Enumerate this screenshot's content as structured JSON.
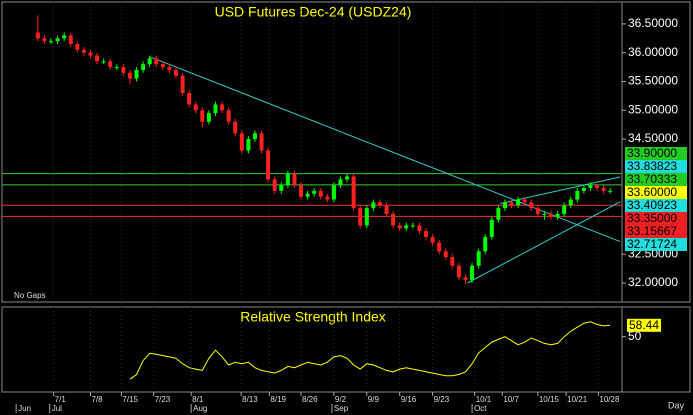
{
  "chart_data": {
    "type": "candlestick",
    "title": "USD  Futures  Dec-24  (USDZ24)",
    "note": "No Gaps",
    "period_label": "Day",
    "xlim": [
      -5.45,
      88.79
    ],
    "xticks": [
      {
        "value": 2.4,
        "label": "7/1"
      },
      {
        "value": 8.0,
        "label": "7/8"
      },
      {
        "value": 12.7,
        "label": "7/15"
      },
      {
        "value": 17.6,
        "label": "7/23"
      },
      {
        "value": 23.3,
        "label": "8/1"
      },
      {
        "value": 30.9,
        "label": "8/13"
      },
      {
        "value": 35.2,
        "label": "8/19"
      },
      {
        "value": 40.0,
        "label": "8/26"
      },
      {
        "value": 45.0,
        "label": "9/2"
      },
      {
        "value": 50.0,
        "label": "9/9"
      },
      {
        "value": 55.0,
        "label": "9/16"
      },
      {
        "value": 60.0,
        "label": "9/23"
      },
      {
        "value": 66.4,
        "label": "10/1"
      },
      {
        "value": 70.6,
        "label": "10/7"
      },
      {
        "value": 76.0,
        "label": "10/15"
      },
      {
        "value": 80.3,
        "label": "10/21"
      },
      {
        "value": 85.2,
        "label": "10/28"
      }
    ],
    "month_ticks": [
      {
        "value": -3.3,
        "label": "Jun"
      },
      {
        "value": 1.8,
        "label": "Jul"
      },
      {
        "value": 23.3,
        "label": "Aug"
      },
      {
        "value": 44.7,
        "label": "Sep"
      },
      {
        "value": 66.0,
        "label": "Oct"
      }
    ],
    "ylim": [
      31.67,
      36.88
    ],
    "yticks": [
      {
        "value": 36.5,
        "label": "36.50000"
      },
      {
        "value": 36.0,
        "label": "36.00000"
      },
      {
        "value": 35.5,
        "label": "35.50000"
      },
      {
        "value": 35.0,
        "label": "35.00000"
      },
      {
        "value": 34.5,
        "label": "34.50000"
      },
      {
        "value": 32.5,
        "label": "32.50000"
      },
      {
        "value": 32.0,
        "label": "32.00000"
      }
    ],
    "up_color": "#00ff00",
    "down_color": "#ff2020",
    "candles": [
      [
        36.35,
        36.65,
        36.2,
        36.25
      ],
      [
        36.25,
        36.3,
        36.15,
        36.2
      ],
      [
        36.2,
        36.25,
        36.15,
        36.2
      ],
      [
        36.2,
        36.3,
        36.15,
        36.25
      ],
      [
        36.25,
        36.35,
        36.2,
        36.3
      ],
      [
        36.3,
        36.35,
        36.1,
        36.15
      ],
      [
        36.15,
        36.2,
        36.0,
        36.05
      ],
      [
        36.05,
        36.1,
        35.95,
        36.0
      ],
      [
        36.0,
        36.05,
        35.9,
        35.95
      ],
      [
        35.95,
        36.0,
        35.8,
        35.85
      ],
      [
        35.85,
        35.9,
        35.8,
        35.85
      ],
      [
        35.85,
        35.9,
        35.7,
        35.75
      ],
      [
        35.75,
        35.8,
        35.7,
        35.75
      ],
      [
        35.75,
        35.8,
        35.6,
        35.65
      ],
      [
        35.65,
        35.7,
        35.45,
        35.55
      ],
      [
        35.55,
        35.75,
        35.5,
        35.7
      ],
      [
        35.7,
        35.85,
        35.65,
        35.8
      ],
      [
        35.8,
        35.95,
        35.75,
        35.9
      ],
      [
        35.9,
        35.95,
        35.75,
        35.8
      ],
      [
        35.8,
        35.85,
        35.7,
        35.75
      ],
      [
        35.75,
        35.8,
        35.65,
        35.7
      ],
      [
        35.7,
        35.75,
        35.55,
        35.6
      ],
      [
        35.6,
        35.65,
        35.25,
        35.3
      ],
      [
        35.3,
        35.35,
        35.05,
        35.1
      ],
      [
        35.1,
        35.15,
        34.95,
        35.0
      ],
      [
        35.0,
        35.05,
        34.7,
        34.8
      ],
      [
        34.8,
        35.0,
        34.75,
        34.95
      ],
      [
        34.95,
        35.15,
        34.9,
        35.1
      ],
      [
        35.1,
        35.15,
        34.95,
        35.0
      ],
      [
        35.0,
        35.05,
        34.75,
        34.8
      ],
      [
        34.8,
        34.85,
        34.55,
        34.6
      ],
      [
        34.6,
        34.65,
        34.25,
        34.3
      ],
      [
        34.3,
        34.55,
        34.25,
        34.5
      ],
      [
        34.5,
        34.65,
        34.45,
        34.6
      ],
      [
        34.6,
        34.65,
        34.25,
        34.3
      ],
      [
        34.3,
        34.35,
        33.75,
        33.8
      ],
      [
        33.8,
        33.85,
        33.55,
        33.6
      ],
      [
        33.6,
        33.75,
        33.55,
        33.7
      ],
      [
        33.7,
        33.95,
        33.65,
        33.9
      ],
      [
        33.9,
        33.95,
        33.65,
        33.7
      ],
      [
        33.7,
        33.75,
        33.45,
        33.5
      ],
      [
        33.5,
        33.6,
        33.45,
        33.55
      ],
      [
        33.55,
        33.65,
        33.5,
        33.6
      ],
      [
        33.6,
        33.65,
        33.45,
        33.5
      ],
      [
        33.5,
        33.55,
        33.4,
        33.45
      ],
      [
        33.45,
        33.75,
        33.4,
        33.7
      ],
      [
        33.7,
        33.85,
        33.65,
        33.8
      ],
      [
        33.8,
        33.9,
        33.75,
        33.85
      ],
      [
        33.85,
        33.9,
        33.25,
        33.3
      ],
      [
        33.3,
        33.35,
        32.95,
        33.0
      ],
      [
        33.0,
        33.35,
        32.95,
        33.3
      ],
      [
        33.3,
        33.45,
        33.25,
        33.4
      ],
      [
        33.4,
        33.45,
        33.3,
        33.35
      ],
      [
        33.35,
        33.4,
        33.15,
        33.2
      ],
      [
        33.2,
        33.25,
        32.95,
        33.0
      ],
      [
        33.0,
        33.05,
        32.9,
        32.95
      ],
      [
        32.95,
        33.05,
        32.9,
        33.0
      ],
      [
        33.0,
        33.05,
        32.95,
        33.0
      ],
      [
        33.0,
        33.05,
        32.85,
        32.9
      ],
      [
        32.9,
        32.95,
        32.75,
        32.8
      ],
      [
        32.8,
        32.85,
        32.65,
        32.7
      ],
      [
        32.7,
        32.75,
        32.5,
        32.55
      ],
      [
        32.55,
        32.6,
        32.4,
        32.45
      ],
      [
        32.45,
        32.5,
        32.25,
        32.3
      ],
      [
        32.3,
        32.35,
        32.05,
        32.1
      ],
      [
        32.1,
        32.15,
        31.98,
        32.05
      ],
      [
        32.05,
        32.35,
        32.0,
        32.3
      ],
      [
        32.3,
        32.6,
        32.25,
        32.55
      ],
      [
        32.55,
        32.85,
        32.5,
        32.8
      ],
      [
        32.8,
        33.15,
        32.75,
        33.1
      ],
      [
        33.1,
        33.35,
        33.05,
        33.3
      ],
      [
        33.3,
        33.45,
        33.25,
        33.4
      ],
      [
        33.4,
        33.45,
        33.3,
        33.35
      ],
      [
        33.35,
        33.5,
        33.3,
        33.45
      ],
      [
        33.45,
        33.5,
        33.35,
        33.4
      ],
      [
        33.4,
        33.45,
        33.25,
        33.3
      ],
      [
        33.3,
        33.35,
        33.15,
        33.2
      ],
      [
        33.2,
        33.25,
        33.1,
        33.2
      ],
      [
        33.2,
        33.25,
        33.1,
        33.15
      ],
      [
        33.15,
        33.25,
        33.1,
        33.2
      ],
      [
        33.2,
        33.4,
        33.15,
        33.35
      ],
      [
        33.35,
        33.5,
        33.3,
        33.45
      ],
      [
        33.45,
        33.65,
        33.4,
        33.6
      ],
      [
        33.6,
        33.7,
        33.55,
        33.65
      ],
      [
        33.65,
        33.75,
        33.6,
        33.7
      ],
      [
        33.7,
        33.72,
        33.6,
        33.65
      ],
      [
        33.65,
        33.7,
        33.55,
        33.6
      ],
      [
        33.6,
        33.65,
        33.55,
        33.6
      ]
    ],
    "levels": [
      {
        "value": 33.9,
        "color": "#33cc33"
      },
      {
        "value": 33.70333,
        "color": "#33cc33"
      },
      {
        "value": 33.35,
        "color": "#ee3333"
      },
      {
        "value": 33.15667,
        "color": "#ee3333"
      }
    ],
    "trendlines": [
      {
        "color": "#33cccc",
        "points": [
          [
            17,
            35.93
          ],
          [
            88.5,
            32.72
          ]
        ]
      },
      {
        "color": "#33cccc",
        "points": [
          [
            65.3,
            32.0
          ],
          [
            88.5,
            33.41
          ]
        ]
      },
      {
        "color": "#33cccc",
        "points": [
          [
            70.3,
            33.38
          ],
          [
            88.5,
            33.84
          ]
        ]
      }
    ],
    "price_labels": [
      {
        "value": 33.9,
        "label": "33.90000",
        "color": "#22cc22"
      },
      {
        "value": 33.83823,
        "label": "33.83823",
        "color": "#22dddd"
      },
      {
        "value": 33.70333,
        "label": "33.70333",
        "color": "#22cc22"
      },
      {
        "value": 33.6,
        "label": "33.60000",
        "color": "#ffff00"
      },
      {
        "value": 33.40923,
        "label": "33.40923",
        "color": "#22dddd"
      },
      {
        "value": 33.35,
        "label": "33.35000",
        "color": "#ee2222"
      },
      {
        "value": 33.15667,
        "label": "33.15667",
        "color": "#ee2222"
      },
      {
        "value": 32.71724,
        "label": "32.71724",
        "color": "#22dddd"
      }
    ],
    "rsi": {
      "title": "Relative Strength Index",
      "ylim": [
        9,
        72
      ],
      "yticks": [
        50
      ],
      "color": "#ffff00",
      "last_value": 58.44,
      "values": [
        null,
        null,
        null,
        null,
        null,
        null,
        null,
        null,
        null,
        null,
        null,
        null,
        null,
        null,
        18.5,
        22,
        32.3,
        37.7,
        37,
        36,
        35,
        34,
        30,
        27,
        26,
        25,
        34,
        40,
        35,
        29,
        31,
        30,
        31,
        27,
        25,
        24,
        23,
        25,
        28,
        27,
        29,
        31,
        30,
        29,
        31,
        35,
        36,
        34,
        29,
        26,
        30,
        29,
        27,
        25,
        24,
        26,
        27,
        26,
        25,
        24,
        23,
        22,
        21,
        21,
        22,
        24,
        30,
        38,
        42,
        46,
        48,
        50,
        47,
        44,
        46,
        49,
        47,
        45,
        44,
        45,
        50,
        54,
        57,
        60,
        61,
        59,
        58,
        58.44
      ]
    }
  }
}
